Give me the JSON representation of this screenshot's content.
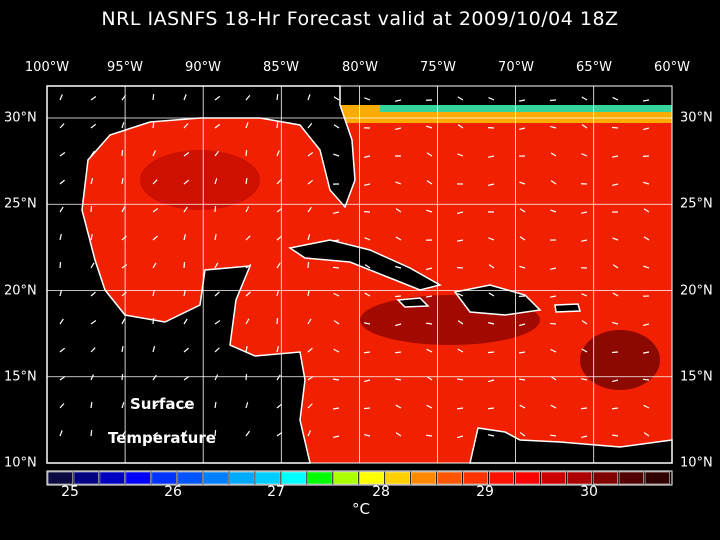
{
  "title": "NRL IASNFS  18-Hr Forecast valid at 2009/10/04 18Z",
  "lon_labels": [
    "100°W",
    "95°W",
    "90°W",
    "85°W",
    "80°W",
    "75°W",
    "70°W",
    "65°W",
    "60°W"
  ],
  "lat_labels": [
    "30°N",
    "25°N",
    "20°N",
    "15°N",
    "10°N"
  ],
  "map_labels": {
    "line1": "Surface",
    "line2": "Temperature"
  },
  "colorbar": {
    "ticks": [
      "25",
      "26",
      "27",
      "28",
      "29",
      "30"
    ],
    "unit": "°C",
    "colors": [
      "#0a0a40",
      "#000080",
      "#0000c0",
      "#0000ff",
      "#0033ff",
      "#0055ff",
      "#0080ff",
      "#00aaff",
      "#00ccff",
      "#00ffff",
      "#00ff00",
      "#aaff00",
      "#ffff00",
      "#ffd000",
      "#ff8800",
      "#ff5500",
      "#ff3300",
      "#ff1100",
      "#ff0000",
      "#cc0000",
      "#aa0000",
      "#800000",
      "#500000",
      "#300000"
    ]
  },
  "colors": {
    "ocean": "#f02000",
    "land": "#000000",
    "coast": "#ffffff",
    "grid": "#ffffff"
  }
}
